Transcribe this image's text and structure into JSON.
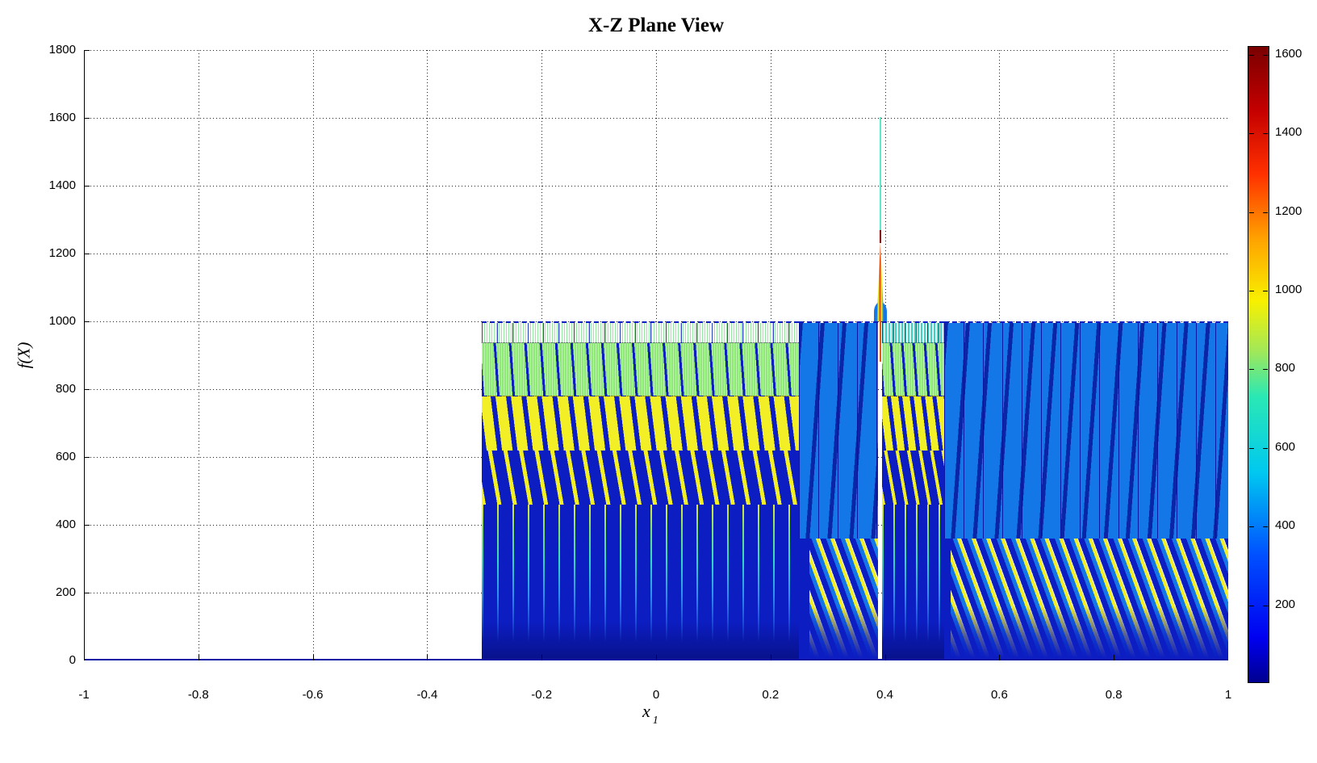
{
  "figure": {
    "title": "X-Z Plane View"
  },
  "axes": {
    "x": {
      "label": "x",
      "label_sub": "1",
      "min": -1,
      "max": 1,
      "ticks": [
        {
          "v": -1,
          "label": "-1"
        },
        {
          "v": -0.8,
          "label": "-0.8"
        },
        {
          "v": -0.6,
          "label": "-0.6"
        },
        {
          "v": -0.4,
          "label": "-0.4"
        },
        {
          "v": -0.2,
          "label": "-0.2"
        },
        {
          "v": 0,
          "label": "0"
        },
        {
          "v": 0.2,
          "label": "0.2"
        },
        {
          "v": 0.4,
          "label": "0.4"
        },
        {
          "v": 0.6,
          "label": "0.6"
        },
        {
          "v": 0.8,
          "label": "0.8"
        },
        {
          "v": 1,
          "label": "1"
        }
      ]
    },
    "y": {
      "label": "f(X)",
      "min": 0,
      "max": 1800,
      "ticks": [
        {
          "v": 0,
          "label": "0"
        },
        {
          "v": 200,
          "label": "200"
        },
        {
          "v": 400,
          "label": "400"
        },
        {
          "v": 600,
          "label": "600"
        },
        {
          "v": 800,
          "label": "800"
        },
        {
          "v": 1000,
          "label": "1000"
        },
        {
          "v": 1200,
          "label": "1200"
        },
        {
          "v": 1400,
          "label": "1400"
        },
        {
          "v": 1600,
          "label": "1600"
        },
        {
          "v": 1800,
          "label": "1800"
        }
      ]
    }
  },
  "colorbar": {
    "min": 0,
    "max": 1620,
    "ticks": [
      {
        "v": 200,
        "label": "200"
      },
      {
        "v": 400,
        "label": "400"
      },
      {
        "v": 600,
        "label": "600"
      },
      {
        "v": 800,
        "label": "800"
      },
      {
        "v": 1000,
        "label": "1000"
      },
      {
        "v": 1200,
        "label": "1200"
      },
      {
        "v": 1400,
        "label": "1400"
      },
      {
        "v": 1600,
        "label": "1600"
      }
    ]
  },
  "colors": {
    "navy": "#0c1dc2",
    "royal": "#1377e8",
    "yellow": "#f3ef26",
    "green": "#8fe976",
    "mint": "#97e9a4",
    "cyan2": "#38d2cc",
    "spikecyan": "#5fe9c9",
    "spikered": "#8b0000",
    "grid": "#222222"
  },
  "chart_data": {
    "type": "area",
    "title": "X-Z Plane View",
    "xlabel": "x_1",
    "ylabel": "f(X)",
    "x_range": [
      -1,
      1
    ],
    "y_range": [
      0,
      1800
    ],
    "grid": true,
    "description": "Side (X-Z plane) projection of a dense multimodal surface: f=0 for x<-0.3, densely oscillating striped mass capped at 1000 for -0.3<x<1, thin spike to ~1600 at x=0.39; jet colormap encodes height.",
    "plateau_level": 1000,
    "hooks_top": 360,
    "baseline": {
      "x0": -1,
      "x1": -0.305,
      "value": 0
    },
    "spike": {
      "x": 0.392,
      "peak": 1602,
      "segments": [
        {
          "v0": 1270,
          "v1": 1602,
          "w": 2,
          "cls": "spike-cyan"
        },
        {
          "v0": 1232,
          "v1": 1270,
          "w": 2,
          "cls": "spike-red"
        },
        {
          "v0": 1000,
          "v1": 1058,
          "w": 16,
          "cls": "spike-bulge"
        },
        {
          "v0": 1000,
          "v1": 1232,
          "w": 9,
          "cls": "spike-tri"
        },
        {
          "v0": 880,
          "v1": 1000,
          "w": 2,
          "cls": "spike-stem"
        }
      ]
    },
    "regions": [
      {
        "name": "dense-bands-left",
        "x0": -0.305,
        "x1": 0.25,
        "top": 1000,
        "style": "bands"
      },
      {
        "name": "royal-left",
        "x0": 0.25,
        "x1": 0.388,
        "top": 1000,
        "style": "royal",
        "hooks": {
          "x0": 0.268,
          "x1": 0.388
        }
      },
      {
        "name": "dense-bands-mid",
        "x0": 0.395,
        "x1": 0.503,
        "top": 1000,
        "style": "bands2"
      },
      {
        "name": "royal-right",
        "x0": 0.503,
        "x1": 1.0,
        "top": 1000,
        "style": "royal",
        "hooks": {
          "x0": 0.515,
          "x1": 1.0
        }
      }
    ],
    "band_styles": {
      "bands": [
        {
          "v0": 935,
          "v1": 1000,
          "cls": "bt"
        },
        {
          "v0": 780,
          "v1": 935,
          "cls": "bgreen"
        },
        {
          "v0": 620,
          "v1": 780,
          "cls": "byellow"
        },
        {
          "v0": 460,
          "v1": 620,
          "cls": "bydash"
        },
        {
          "v0": 0,
          "v1": 460,
          "cls": "bfade",
          "ol": "fade-ol"
        }
      ],
      "bands2": [
        {
          "v0": 935,
          "v1": 1000,
          "cls": "bt2"
        },
        {
          "v0": 780,
          "v1": 935,
          "cls": "bgreen tight"
        },
        {
          "v0": 620,
          "v1": 780,
          "cls": "byellow tight"
        },
        {
          "v0": 460,
          "v1": 620,
          "cls": "bydash tight"
        },
        {
          "v0": 0,
          "v1": 460,
          "cls": "bfade tight",
          "ol": "fade-ol"
        }
      ],
      "royal": [
        {
          "v0": 360,
          "v1": 1000,
          "cls": "royaltop"
        },
        {
          "v0": 0,
          "v1": 360,
          "cls": "navybase"
        }
      ]
    },
    "colormap": {
      "name": "jet",
      "min": 0,
      "max": 1620,
      "stops": [
        [
          0.0,
          "#000090"
        ],
        [
          0.07,
          "#0000f0"
        ],
        [
          0.2,
          "#0050ff"
        ],
        [
          0.33,
          "#00c8f0"
        ],
        [
          0.45,
          "#2ae8b4"
        ],
        [
          0.52,
          "#a0e85a"
        ],
        [
          0.6,
          "#f8f000"
        ],
        [
          0.7,
          "#ffa000"
        ],
        [
          0.8,
          "#ff3000"
        ],
        [
          0.9,
          "#c40000"
        ],
        [
          1.0,
          "#7a0000"
        ]
      ]
    }
  }
}
